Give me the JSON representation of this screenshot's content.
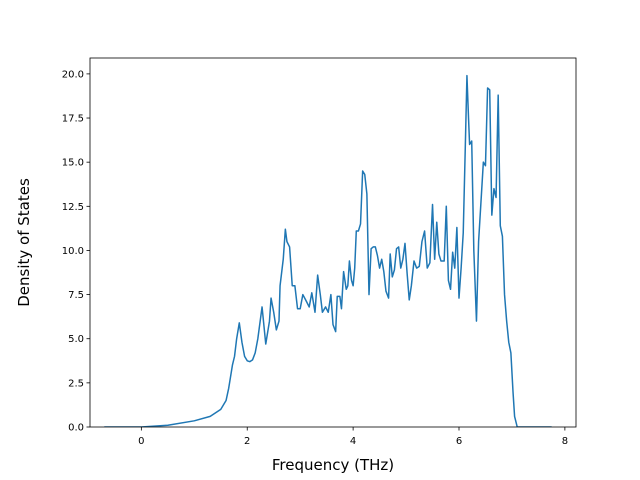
{
  "chart_data": {
    "type": "line",
    "x_label": "Frequency (THz)",
    "y_label": "Density of States",
    "color": "#1f77b4",
    "xlim": [
      -0.97,
      8.21
    ],
    "ylim": [
      0,
      20.9
    ],
    "xticks": [
      0,
      2,
      4,
      6,
      8
    ],
    "yticks": [
      {
        "value": 0,
        "label": "0.0"
      },
      {
        "value": 2.5,
        "label": "2.5"
      },
      {
        "value": 5,
        "label": "5.0"
      },
      {
        "value": 7.5,
        "label": "7.5"
      },
      {
        "value": 10,
        "label": "10.0"
      },
      {
        "value": 12.5,
        "label": "12.5"
      },
      {
        "value": 15,
        "label": "15.0"
      },
      {
        "value": 17.5,
        "label": "17.5"
      },
      {
        "value": 20,
        "label": "20.0"
      }
    ],
    "x": [
      -0.7,
      0,
      0.5,
      1.0,
      1.3,
      1.5,
      1.6,
      1.65,
      1.72,
      1.76,
      1.8,
      1.85,
      1.9,
      1.95,
      2.0,
      2.05,
      2.1,
      2.15,
      2.2,
      2.28,
      2.35,
      2.42,
      2.45,
      2.5,
      2.55,
      2.6,
      2.62,
      2.68,
      2.72,
      2.75,
      2.8,
      2.85,
      2.9,
      2.95,
      3.0,
      3.05,
      3.12,
      3.17,
      3.22,
      3.28,
      3.33,
      3.38,
      3.42,
      3.48,
      3.53,
      3.58,
      3.62,
      3.67,
      3.7,
      3.75,
      3.78,
      3.82,
      3.87,
      3.9,
      3.93,
      3.97,
      4.0,
      4.03,
      4.06,
      4.1,
      4.14,
      4.18,
      4.22,
      4.26,
      4.3,
      4.34,
      4.38,
      4.42,
      4.46,
      4.5,
      4.54,
      4.58,
      4.62,
      4.67,
      4.7,
      4.74,
      4.78,
      4.82,
      4.86,
      4.9,
      4.94,
      4.98,
      5.02,
      5.06,
      5.1,
      5.15,
      5.2,
      5.25,
      5.3,
      5.35,
      5.4,
      5.45,
      5.5,
      5.54,
      5.58,
      5.62,
      5.66,
      5.72,
      5.76,
      5.8,
      5.84,
      5.88,
      5.92,
      5.96,
      6.0,
      6.04,
      6.08,
      6.12,
      6.15,
      6.18,
      6.2,
      6.24,
      6.28,
      6.33,
      6.37,
      6.42,
      6.46,
      6.5,
      6.54,
      6.58,
      6.62,
      6.66,
      6.7,
      6.74,
      6.78,
      6.82,
      6.86,
      6.9,
      6.94,
      6.98,
      7.02,
      7.05,
      7.1,
      7.75
    ],
    "values": [
      0,
      0,
      0.1,
      0.35,
      0.6,
      1.0,
      1.5,
      2.2,
      3.5,
      4.0,
      5.0,
      5.9,
      4.8,
      4.0,
      3.75,
      3.7,
      3.8,
      4.2,
      5.0,
      6.8,
      4.7,
      6.0,
      7.3,
      6.5,
      5.5,
      6.0,
      8.0,
      9.5,
      11.2,
      10.5,
      10.2,
      8.0,
      8.0,
      6.7,
      6.7,
      7.5,
      7.1,
      6.8,
      7.6,
      6.5,
      8.6,
      7.5,
      6.5,
      6.8,
      6.5,
      7.5,
      5.8,
      5.4,
      7.4,
      7.4,
      6.7,
      8.8,
      7.8,
      8.0,
      9.4,
      8.3,
      8.0,
      9.0,
      11.1,
      11.1,
      11.5,
      14.5,
      14.3,
      13.2,
      7.5,
      10.1,
      10.2,
      10.2,
      9.7,
      9.0,
      9.5,
      8.8,
      7.7,
      7.3,
      9.8,
      8.5,
      8.9,
      10.1,
      10.2,
      9.0,
      9.5,
      10.4,
      8.7,
      7.2,
      8.0,
      9.4,
      9.0,
      9.1,
      10.5,
      11.1,
      9.0,
      9.3,
      12.6,
      9.5,
      11.6,
      9.8,
      9.4,
      9.4,
      12.5,
      8.3,
      7.8,
      9.9,
      9.0,
      11.3,
      7.3,
      9.0,
      11.0,
      16.0,
      19.9,
      17.5,
      16.0,
      16.2,
      10.0,
      6.0,
      10.5,
      13.0,
      15.0,
      14.8,
      19.2,
      19.1,
      12.0,
      13.5,
      13.0,
      18.8,
      11.4,
      10.8,
      7.5,
      6.0,
      4.8,
      4.2,
      2.0,
      0.6,
      0,
      0
    ]
  }
}
